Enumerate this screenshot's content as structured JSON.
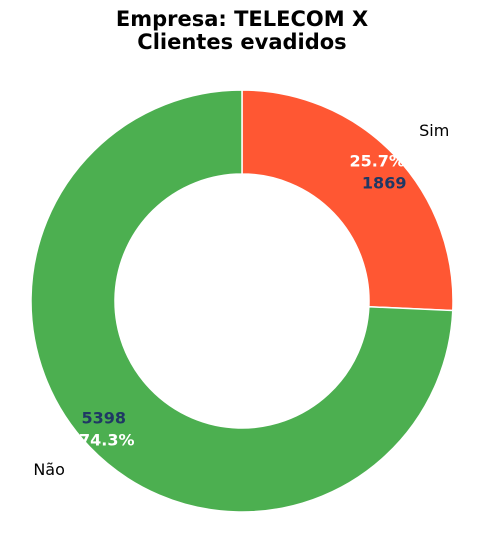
{
  "chart_data": {
    "type": "pie",
    "donut": true,
    "title": "Empresa: TELECOM X",
    "subtitle": "Clientes evadidos",
    "slices": [
      {
        "label": "Sim",
        "value": 1869,
        "value_text": "1869",
        "percent_text": "25.7%",
        "color": "#FF5733"
      },
      {
        "label": "Não",
        "value": 5398,
        "value_text": "5398",
        "percent_text": "74.3%",
        "color": "#4CAF50"
      }
    ],
    "start_angle": "top, clockwise",
    "legend": "none",
    "count_label_color": "#1F3864",
    "percent_label_color": "#FFFFFF"
  }
}
